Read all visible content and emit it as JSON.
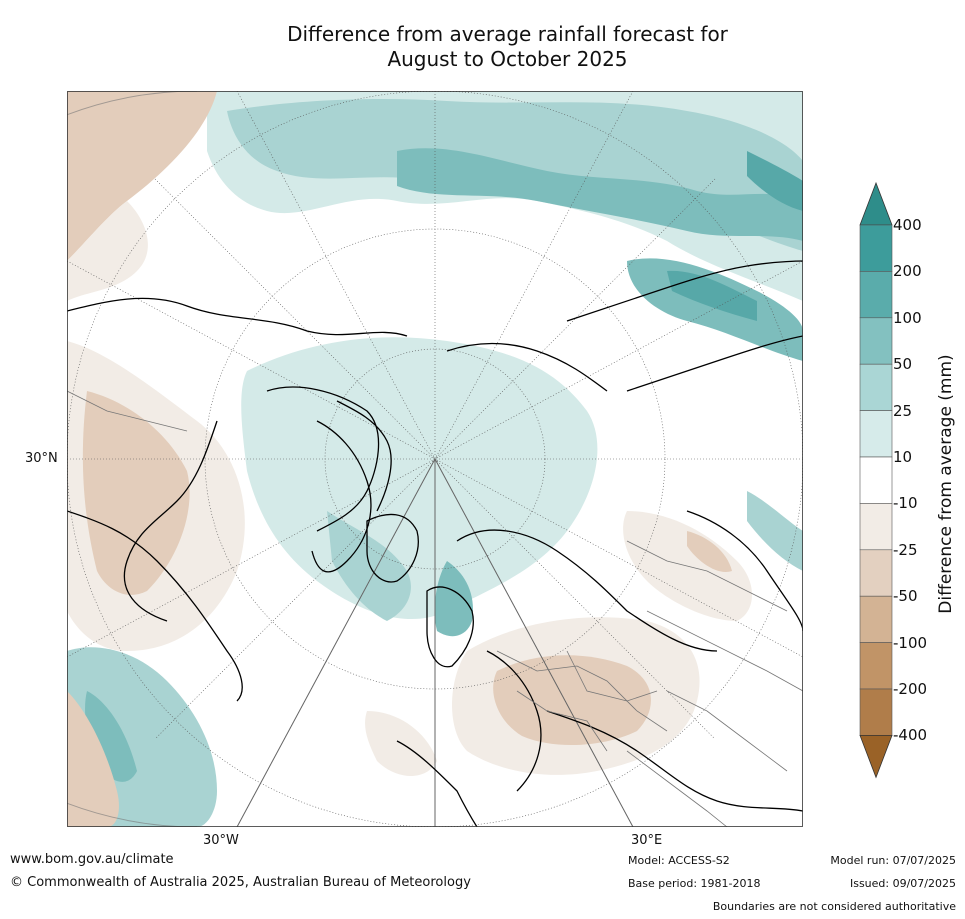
{
  "header": {
    "title_line1": "Difference from average rainfall forecast for",
    "title_line2": "August to October 2025"
  },
  "map": {
    "projection": "north-polar-stereographic",
    "labels": {
      "lat_30n": "30°N",
      "lon_30w": "30°W",
      "lon_30e": "30°E"
    },
    "palette": {
      "ocean_wet_light": "#d4eae8",
      "wet_mid": "#a9d3d2",
      "wet_strong": "#7dbdbc",
      "wet_stronger": "#57a8a8",
      "dry_light": "#f2ece6",
      "dry_mid": "#e3cdbb",
      "dry_strong": "#cfac8c"
    }
  },
  "legend": {
    "title": "Difference from average (mm)",
    "ticks": [
      "400",
      "200",
      "100",
      "50",
      "25",
      "10",
      "-10",
      "-25",
      "-50",
      "-100",
      "-200",
      "-400"
    ],
    "colors": [
      "#2e8d8a",
      "#3d9c9b",
      "#5aacab",
      "#83c1c0",
      "#aad6d5",
      "#d6ebea",
      "#ffffff",
      "#f2ece6",
      "#e3d0c0",
      "#d3b394",
      "#c19467",
      "#b07d4a",
      "#9a6227"
    ]
  },
  "footer": {
    "url": "www.bom.gov.au/climate",
    "copyright": "© Commonwealth of Australia 2025, Australian Bureau of Meteorology",
    "model": "Model: ACCESS-S2",
    "base_period": "Base period: 1981-2018",
    "model_run": "Model run: 07/07/2025",
    "issued": "Issued: 09/07/2025",
    "disclaimer": "Boundaries are not considered authoritative"
  }
}
